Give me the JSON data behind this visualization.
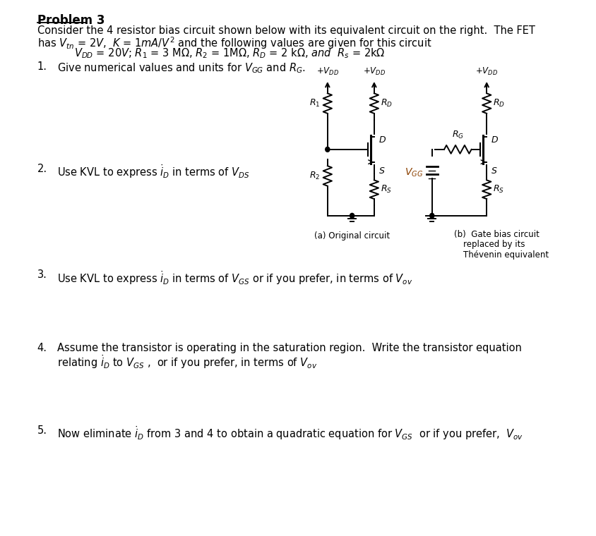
{
  "bg_color": "#ffffff",
  "figsize": [
    8.45,
    7.6
  ],
  "dpi": 100,
  "title": "Problem 3",
  "line1": "Consider the 4 resistor bias circuit shown below with its equivalent circuit on the right.  The FET",
  "caption_a": "(a) Original circuit",
  "caption_b1": "(b)  Gate bias circuit",
  "caption_b2": "replaced by its",
  "caption_b3": "Thévenin equivalent"
}
